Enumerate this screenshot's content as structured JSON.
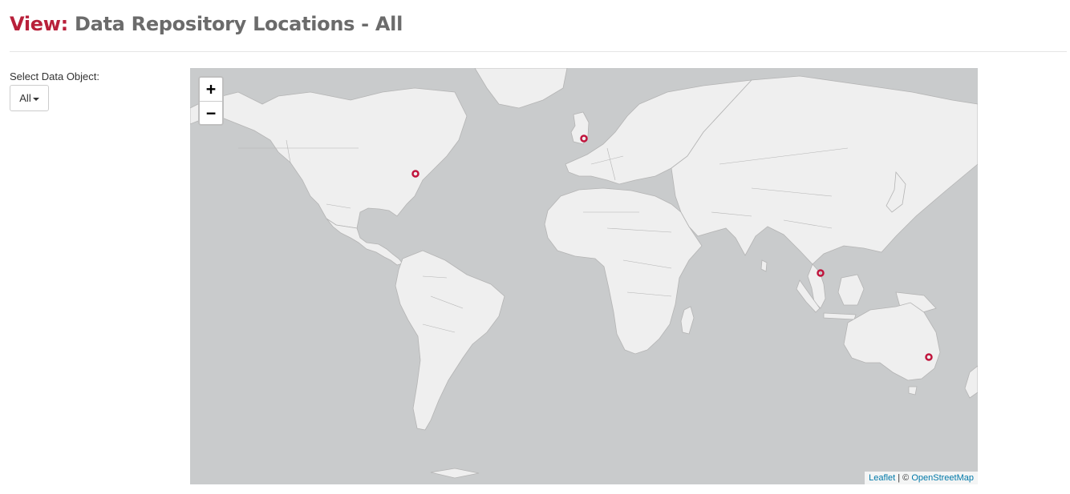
{
  "header": {
    "title_prefix": "View:",
    "title_text": " Data Repository Locations - All"
  },
  "filter": {
    "label": "Select Data Object:",
    "selected": "All"
  },
  "map": {
    "zoom_in": "+",
    "zoom_out": "−",
    "attribution": {
      "leaflet": "Leaflet",
      "separator": " | © ",
      "osm": "OpenStreetMap"
    },
    "land_color": "#efefef",
    "water_color": "#c9cbcc",
    "marker_color": "#c0143c"
  }
}
